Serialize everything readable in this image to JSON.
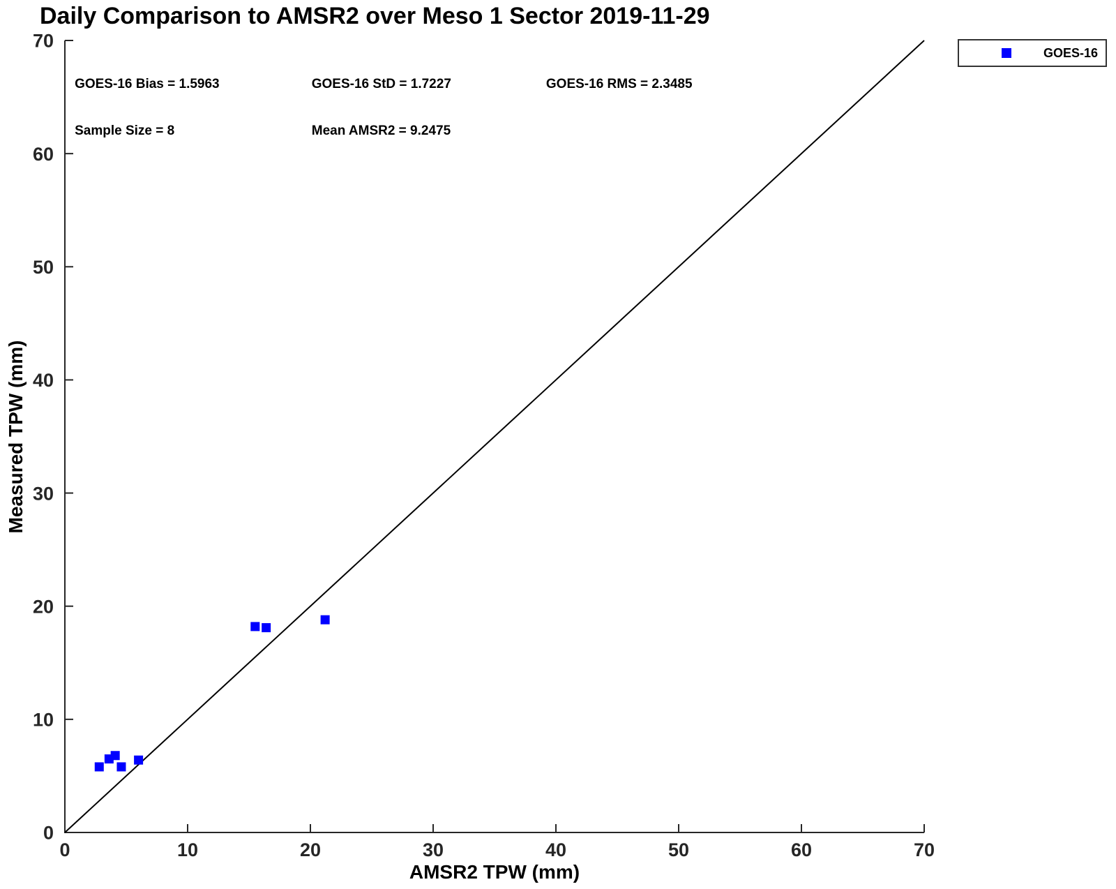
{
  "figure_title": "Daily Comparison to AMSR2 over Meso 1 Sector 2019-11-29",
  "legend": {
    "items": [
      {
        "label": "GOES-16",
        "marker": "filled-square",
        "color": "#0000ff"
      }
    ],
    "position": "top-right-outside"
  },
  "colors": {
    "marker": "#0000ff",
    "axis": "#262626",
    "tick_label": "#262626",
    "text": "#000000",
    "identity_line": "#000000",
    "background": "#ffffff"
  },
  "chart_data": {
    "type": "scatter",
    "title": "Daily Comparison to AMSR2 over Meso 1 Sector 2019-11-29",
    "xlabel": "AMSR2 TPW (mm)",
    "ylabel": "Measured TPW (mm)",
    "xlim": [
      0,
      70
    ],
    "ylim": [
      0,
      70
    ],
    "xticks": [
      0,
      10,
      20,
      30,
      40,
      50,
      60,
      70
    ],
    "yticks": [
      0,
      10,
      20,
      30,
      40,
      50,
      60,
      70
    ],
    "grid": false,
    "legend_position": "top-right-outside",
    "series": [
      {
        "name": "GOES-16",
        "marker": "square",
        "color": "#0000ff",
        "marker_size": 13,
        "points": [
          [
            2.8,
            5.8
          ],
          [
            3.6,
            6.5
          ],
          [
            4.1,
            6.8
          ],
          [
            4.6,
            5.8
          ],
          [
            6.0,
            6.4
          ],
          [
            15.5,
            18.2
          ],
          [
            16.4,
            18.1
          ],
          [
            21.2,
            18.8
          ]
        ]
      }
    ],
    "identity_line": {
      "from": [
        0,
        0
      ],
      "to": [
        70,
        70
      ],
      "color": "#000000"
    },
    "annotations": [
      {
        "text": "GOES-16 Bias = 1.5963",
        "x": 0.8,
        "y": 66.1
      },
      {
        "text": "GOES-16 StD = 1.7227",
        "x": 20.1,
        "y": 66.1
      },
      {
        "text": "GOES-16 RMS = 2.3485",
        "x": 39.2,
        "y": 66.1
      },
      {
        "text": "Sample Size = 8",
        "x": 0.8,
        "y": 62.0
      },
      {
        "text": "Mean AMSR2 = 9.2475",
        "x": 20.1,
        "y": 62.0
      }
    ]
  }
}
